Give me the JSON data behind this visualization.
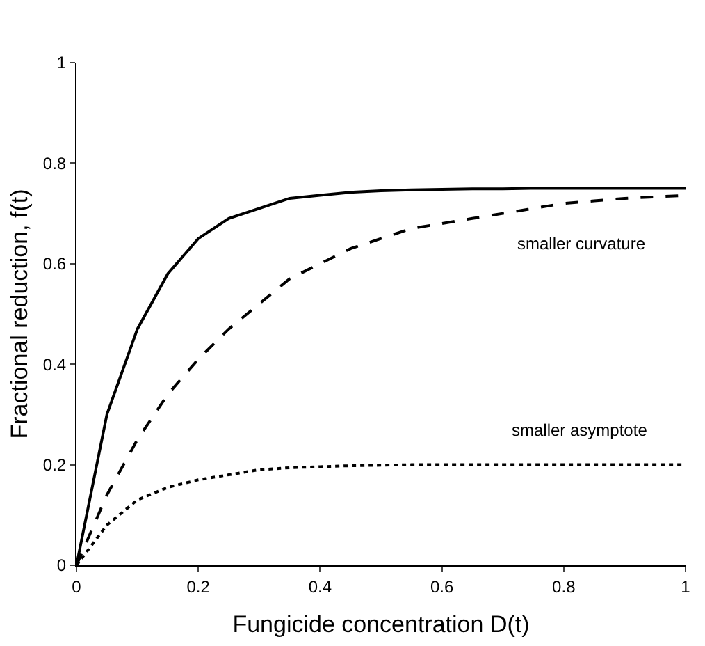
{
  "chart_data": {
    "type": "line",
    "xlabel": "Fungicide concentration D(t)",
    "ylabel": "Fractional reduction, f(t)",
    "x": [
      0,
      0.05,
      0.1,
      0.15,
      0.2,
      0.25,
      0.3,
      0.35,
      0.4,
      0.45,
      0.5,
      0.55,
      0.6,
      0.65,
      0.7,
      0.75,
      0.8,
      0.85,
      0.9,
      0.95,
      1
    ],
    "series": [
      {
        "color": "#000000",
        "line_style": "solid",
        "values": [
          0,
          0.3,
          0.47,
          0.58,
          0.65,
          0.69,
          0.71,
          0.73,
          0.736,
          0.742,
          0.745,
          0.747,
          0.748,
          0.749,
          0.749,
          0.75,
          0.75,
          0.75,
          0.75,
          0.75,
          0.75
        ]
      },
      {
        "color": "#000000",
        "line_style": "dashed",
        "values": [
          0,
          0.14,
          0.25,
          0.34,
          0.41,
          0.47,
          0.52,
          0.57,
          0.6,
          0.63,
          0.65,
          0.67,
          0.68,
          0.69,
          0.7,
          0.71,
          0.72,
          0.725,
          0.73,
          0.733,
          0.736
        ]
      },
      {
        "color": "#000000",
        "line_style": "dotted",
        "values": [
          0,
          0.08,
          0.13,
          0.155,
          0.17,
          0.18,
          0.19,
          0.194,
          0.196,
          0.198,
          0.199,
          0.2,
          0.2,
          0.2,
          0.2,
          0.2,
          0.2,
          0.2,
          0.2,
          0.2,
          0.2
        ]
      }
    ],
    "annotations": [
      "smaller curvature",
      "smaller asymptote"
    ],
    "xlim": [
      0,
      1
    ],
    "ylim": [
      0,
      1
    ],
    "xticks": [
      0,
      0.2,
      0.4,
      0.6,
      0.8,
      1
    ],
    "yticks": [
      0,
      0.2,
      0.4,
      0.6,
      0.8,
      1
    ],
    "marker": "none"
  }
}
